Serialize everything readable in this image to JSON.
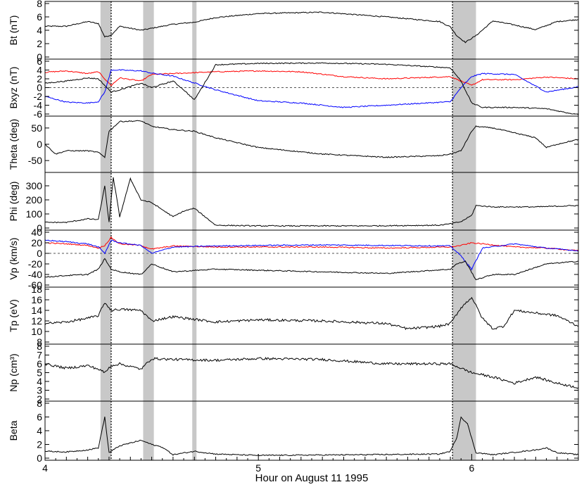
{
  "figure": {
    "xlabel": "Hour on August 11 1995",
    "xticks": [
      "4",
      "5",
      "6"
    ]
  },
  "colors": {
    "black": "#000000",
    "red": "#ff0000",
    "blue": "#0000ff",
    "shade": "#c8c8c8"
  },
  "chart_data": {
    "type": "line",
    "x_range": [
      4.0,
      6.5
    ],
    "shaded_intervals": [
      [
        4.26,
        4.31
      ],
      [
        4.46,
        4.51
      ],
      [
        4.69,
        4.71
      ],
      [
        5.91,
        6.02
      ]
    ],
    "dotted_vertical_lines": [
      4.31,
      5.91
    ],
    "panels": [
      {
        "ylabel": "Bt (nT)",
        "ylim": [
          0,
          8
        ],
        "yticks": [
          "0",
          "2",
          "4",
          "6",
          "8"
        ],
        "series": [
          {
            "color": "black",
            "x": [
              4.0,
              4.1,
              4.2,
              4.25,
              4.28,
              4.31,
              4.35,
              4.45,
              4.5,
              4.6,
              4.7,
              4.8,
              5.0,
              5.3,
              5.6,
              5.85,
              5.9,
              5.93,
              5.97,
              6.02,
              6.1,
              6.2,
              6.3,
              6.4,
              6.5
            ],
            "y": [
              4.6,
              4.6,
              5.3,
              5.0,
              3.0,
              3.3,
              4.6,
              4.0,
              4.3,
              4.9,
              5.2,
              5.9,
              6.5,
              6.7,
              6.0,
              5.3,
              4.5,
              3.2,
              2.2,
              3.2,
              5.4,
              4.8,
              4.1,
              5.3,
              5.6
            ]
          }
        ]
      },
      {
        "ylabel": "Bxyz (nT)",
        "ylim": [
          -6,
          6
        ],
        "yticks": [
          "-6",
          "-4",
          "-2",
          "0",
          "2",
          "4",
          "6"
        ],
        "zero_line": true,
        "series": [
          {
            "color": "red",
            "x": [
              4.0,
              4.1,
              4.2,
              4.25,
              4.28,
              4.31,
              4.35,
              4.45,
              4.5,
              4.6,
              4.8,
              5.0,
              5.2,
              5.4,
              5.6,
              5.9,
              5.95,
              6.0,
              6.05,
              6.2,
              6.35,
              6.5
            ],
            "y": [
              3.5,
              3.8,
              3.2,
              3.6,
              2.0,
              0.5,
              2.2,
              1.5,
              3.0,
              3.2,
              3.6,
              3.8,
              3.6,
              2.5,
              2.0,
              2.5,
              1.5,
              0.5,
              1.8,
              1.8,
              2.4,
              2.0
            ]
          },
          {
            "color": "blue",
            "x": [
              4.0,
              4.1,
              4.2,
              4.25,
              4.28,
              4.31,
              4.35,
              4.45,
              4.5,
              4.6,
              4.8,
              5.0,
              5.2,
              5.4,
              5.6,
              5.9,
              5.95,
              6.0,
              6.05,
              6.2,
              6.35,
              6.5
            ],
            "y": [
              -2.0,
              -3.3,
              -3.5,
              -3.2,
              -1.0,
              4.0,
              4.0,
              3.8,
              3.3,
              2.6,
              -0.5,
              -3.0,
              -3.5,
              -4.5,
              -4.0,
              -3.2,
              0.0,
              2.5,
              3.2,
              3.0,
              -1.0,
              0.2
            ]
          },
          {
            "color": "black",
            "x": [
              4.0,
              4.1,
              4.2,
              4.25,
              4.28,
              4.31,
              4.35,
              4.45,
              4.5,
              4.6,
              4.65,
              4.7,
              4.8,
              5.0,
              5.3,
              5.6,
              5.9,
              5.95,
              6.0,
              6.05,
              6.2,
              6.35,
              6.5
            ],
            "y": [
              1.0,
              1.5,
              2.2,
              2.0,
              0.5,
              -1.0,
              -0.5,
              1.0,
              0.0,
              1.5,
              -0.5,
              -2.8,
              5.2,
              5.5,
              5.6,
              5.3,
              4.5,
              1.5,
              -3.5,
              -4.5,
              -4.5,
              -4.8,
              -6.2
            ]
          }
        ]
      },
      {
        "ylabel": "Theta (deg)",
        "ylim": [
          -80,
          80
        ],
        "yticks": [
          "-50",
          "0",
          "50"
        ],
        "series": [
          {
            "color": "black",
            "x": [
              4.0,
              4.05,
              4.1,
              4.2,
              4.25,
              4.28,
              4.3,
              4.35,
              4.45,
              4.5,
              4.6,
              4.7,
              4.8,
              5.0,
              5.3,
              5.6,
              5.85,
              5.9,
              5.95,
              6.0,
              6.02,
              6.1,
              6.2,
              6.3,
              6.35,
              6.4,
              6.5
            ],
            "y": [
              0,
              -30,
              -20,
              -20,
              -25,
              -40,
              40,
              70,
              72,
              55,
              45,
              40,
              20,
              -10,
              -30,
              -40,
              -35,
              -30,
              -20,
              40,
              55,
              50,
              35,
              20,
              -10,
              0,
              15
            ]
          }
        ]
      },
      {
        "ylabel": "Phi (deg)",
        "ylim": [
          0,
          380
        ],
        "yticks": [
          "0",
          "100",
          "200",
          "300"
        ],
        "series": [
          {
            "color": "black",
            "x": [
              4.0,
              4.1,
              4.2,
              4.25,
              4.28,
              4.3,
              4.32,
              4.35,
              4.4,
              4.45,
              4.5,
              4.6,
              4.65,
              4.7,
              4.8,
              5.0,
              5.5,
              5.85,
              5.9,
              5.95,
              6.0,
              6.02,
              6.1,
              6.3,
              6.5
            ],
            "y": [
              40,
              40,
              65,
              60,
              300,
              40,
              360,
              80,
              350,
              200,
              180,
              80,
              120,
              140,
              20,
              15,
              15,
              20,
              30,
              45,
              90,
              160,
              150,
              150,
              160
            ]
          }
        ]
      },
      {
        "ylabel": "Vp (km/s)",
        "ylim": [
          -60,
          40
        ],
        "yticks": [
          "-60",
          "-40",
          "-20",
          "0",
          "20",
          "40"
        ],
        "zero_line": true,
        "series": [
          {
            "color": "red",
            "x": [
              4.0,
              4.1,
              4.2,
              4.25,
              4.28,
              4.31,
              4.35,
              4.45,
              4.5,
              4.6,
              4.8,
              5.0,
              5.3,
              5.6,
              5.9,
              5.95,
              6.0,
              6.05,
              6.2,
              6.35,
              6.5
            ],
            "y": [
              20,
              18,
              15,
              10,
              15,
              30,
              18,
              15,
              8,
              14,
              12,
              12,
              12,
              10,
              12,
              15,
              20,
              18,
              12,
              10,
              5
            ]
          },
          {
            "color": "blue",
            "x": [
              4.0,
              4.1,
              4.2,
              4.25,
              4.28,
              4.31,
              4.35,
              4.45,
              4.5,
              4.6,
              4.8,
              5.0,
              5.3,
              5.6,
              5.9,
              5.95,
              6.0,
              6.05,
              6.2,
              6.35,
              6.5
            ],
            "y": [
              25,
              22,
              18,
              12,
              0,
              25,
              20,
              15,
              0,
              12,
              14,
              15,
              16,
              15,
              14,
              -5,
              -30,
              10,
              18,
              10,
              5
            ]
          },
          {
            "color": "black",
            "x": [
              4.0,
              4.1,
              4.2,
              4.25,
              4.28,
              4.31,
              4.35,
              4.45,
              4.5,
              4.6,
              4.8,
              5.0,
              5.3,
              5.6,
              5.9,
              5.93,
              5.97,
              6.02,
              6.1,
              6.2,
              6.35,
              6.5
            ],
            "y": [
              -45,
              -42,
              -40,
              -30,
              -10,
              -30,
              -35,
              -40,
              -20,
              -35,
              -30,
              -32,
              -35,
              -38,
              -30,
              -20,
              -15,
              -50,
              -40,
              -40,
              -20,
              -15
            ]
          }
        ]
      },
      {
        "ylabel": "Tp (eV)",
        "ylim": [
          8,
          18
        ],
        "yticks": [
          "8",
          "10",
          "12",
          "14",
          "16",
          "18"
        ],
        "series": [
          {
            "color": "black",
            "x": [
              4.0,
              4.1,
              4.2,
              4.25,
              4.28,
              4.31,
              4.35,
              4.45,
              4.5,
              4.6,
              4.8,
              5.0,
              5.3,
              5.6,
              5.7,
              5.85,
              5.9,
              5.95,
              6.0,
              6.05,
              6.1,
              6.15,
              6.2,
              6.3,
              6.4,
              6.5
            ],
            "y": [
              11.5,
              11.8,
              12.5,
              13.0,
              15.5,
              14.0,
              14.2,
              14.0,
              12.0,
              12.8,
              11.8,
              12.2,
              12.0,
              11.5,
              10.5,
              11.0,
              11.5,
              14.5,
              16.5,
              12.5,
              10.5,
              11.0,
              14.0,
              13.5,
              13.0,
              11.0
            ]
          }
        ]
      },
      {
        "ylabel": "Np (cm³)",
        "ylim": [
          2,
          8
        ],
        "yticks": [
          "2",
          "3",
          "4",
          "5",
          "6",
          "7",
          "8"
        ],
        "series": [
          {
            "color": "black",
            "x": [
              4.0,
              4.1,
              4.2,
              4.25,
              4.28,
              4.31,
              4.35,
              4.45,
              4.5,
              4.6,
              4.8,
              5.0,
              5.3,
              5.6,
              5.9,
              5.95,
              6.0,
              6.1,
              6.2,
              6.3,
              6.4,
              6.5
            ],
            "y": [
              6.0,
              5.5,
              5.8,
              5.4,
              5.0,
              5.8,
              6.0,
              5.4,
              6.6,
              6.5,
              6.4,
              6.6,
              6.5,
              6.0,
              6.0,
              5.5,
              5.0,
              4.5,
              3.8,
              4.5,
              3.8,
              3.3
            ]
          }
        ]
      },
      {
        "ylabel": "Beta",
        "ylim": [
          0,
          8
        ],
        "yticks": [
          "0",
          "2",
          "4",
          "6",
          "8"
        ],
        "series": [
          {
            "color": "black",
            "x": [
              4.0,
              4.1,
              4.2,
              4.25,
              4.27,
              4.28,
              4.3,
              4.35,
              4.45,
              4.5,
              4.55,
              4.6,
              4.7,
              4.8,
              5.0,
              5.5,
              5.85,
              5.9,
              5.93,
              5.95,
              5.98,
              6.02,
              6.1,
              6.3,
              6.35,
              6.4,
              6.5
            ],
            "y": [
              1.0,
              0.9,
              1.2,
              1.5,
              4.5,
              6.0,
              0.8,
              1.8,
              2.6,
              2.0,
              1.6,
              0.5,
              1.0,
              0.6,
              0.4,
              0.5,
              0.6,
              1.0,
              3.0,
              6.0,
              5.0,
              0.8,
              0.5,
              1.2,
              1.5,
              0.8,
              0.5
            ]
          }
        ]
      }
    ]
  }
}
